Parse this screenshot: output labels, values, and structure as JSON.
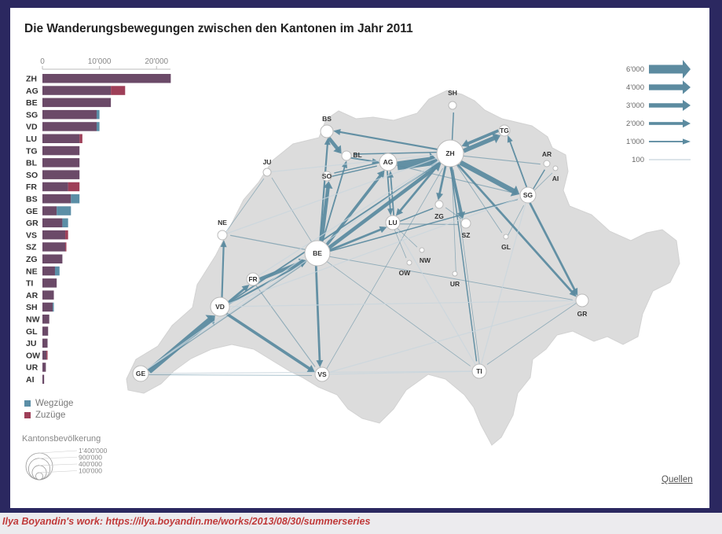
{
  "title": "Die Wanderungsbewegungen zwischen den Kantonen im Jahr 2011",
  "caption": "Ilya Boyandin's work: https://ilya.boyandin.me/works/2013/08/30/summerseries",
  "quellen_label": "Quellen",
  "colors": {
    "wegzuege": "#5b8ea6",
    "zuzuege": "#9e3f58",
    "overlap": "#6b4a68",
    "map": "#dcdcdc",
    "flow": "#5c8ba0"
  },
  "legend": {
    "wegzuege": "Wegzüge",
    "zuzuege": "Zuzüge"
  },
  "population_legend": {
    "title": "Kantonsbevölkerung",
    "labels": [
      "1'400'000",
      "900'000",
      "400'000",
      "100'000"
    ],
    "values": [
      1400000,
      900000,
      400000,
      100000
    ]
  },
  "flow_scale": {
    "labels": [
      "6'000",
      "4'000",
      "3'000",
      "2'000",
      "1'000",
      "100"
    ],
    "values": [
      6000,
      4000,
      3000,
      2000,
      1000,
      100
    ]
  },
  "chart_data": [
    {
      "type": "bar",
      "categories": [
        "ZH",
        "AG",
        "BE",
        "SG",
        "VD",
        "LU",
        "TG",
        "BL",
        "SO",
        "FR",
        "BS",
        "GE",
        "GR",
        "VS",
        "SZ",
        "ZG",
        "NE",
        "TI",
        "AR",
        "SH",
        "NW",
        "GL",
        "JU",
        "OW",
        "UR",
        "AI"
      ],
      "series": [
        {
          "name": "Wegzüge",
          "values": [
            22500,
            12000,
            12000,
            10000,
            10000,
            6500,
            6500,
            6500,
            6500,
            4500,
            6500,
            5000,
            4500,
            4000,
            4000,
            3500,
            3000,
            2500,
            2000,
            2000,
            1200,
            1000,
            900,
            700,
            600,
            300
          ]
        },
        {
          "name": "Zuzüge",
          "values": [
            22500,
            14500,
            12000,
            9500,
            9500,
            7000,
            6500,
            6500,
            6500,
            6500,
            5000,
            2500,
            3500,
            4500,
            4200,
            3500,
            2200,
            2500,
            2000,
            1800,
            1200,
            1000,
            900,
            900,
            600,
            300
          ]
        }
      ],
      "axis_ticks": [
        "0",
        "10'000",
        "20'000"
      ],
      "xlim": [
        0,
        23000
      ]
    },
    {
      "type": "flow-map",
      "nodes": [
        {
          "id": "ZH",
          "label": "ZH"
        },
        {
          "id": "BE",
          "label": "BE"
        },
        {
          "id": "VD",
          "label": "VD"
        },
        {
          "id": "AG",
          "label": "AG"
        },
        {
          "id": "SG",
          "label": "SG"
        },
        {
          "id": "LU",
          "label": "LU"
        },
        {
          "id": "GE",
          "label": "GE"
        },
        {
          "id": "VS",
          "label": "VS"
        },
        {
          "id": "TI",
          "label": "TI"
        },
        {
          "id": "GR",
          "label": "GR"
        },
        {
          "id": "FR",
          "label": "FR"
        },
        {
          "id": "BS",
          "label": "BS"
        },
        {
          "id": "BL",
          "label": "BL"
        },
        {
          "id": "SO",
          "label": "SO"
        },
        {
          "id": "TG",
          "label": "TG"
        },
        {
          "id": "NE",
          "label": "NE"
        },
        {
          "id": "SZ",
          "label": "SZ"
        },
        {
          "id": "ZG",
          "label": "ZG"
        },
        {
          "id": "SH",
          "label": "SH"
        },
        {
          "id": "AR",
          "label": "AR"
        },
        {
          "id": "AI",
          "label": "AI"
        },
        {
          "id": "JU",
          "label": "JU"
        },
        {
          "id": "NW",
          "label": "NW"
        },
        {
          "id": "OW",
          "label": "OW"
        },
        {
          "id": "UR",
          "label": "UR"
        },
        {
          "id": "GL",
          "label": "GL"
        }
      ],
      "flows": [
        {
          "from": "AG",
          "to": "ZH",
          "value": 6000
        },
        {
          "from": "BE",
          "to": "ZH",
          "value": 2500
        },
        {
          "from": "BE",
          "to": "AG",
          "value": 2000
        },
        {
          "from": "BE",
          "to": "LU",
          "value": 1500
        },
        {
          "from": "BE",
          "to": "SO",
          "value": 2500
        },
        {
          "from": "BE",
          "to": "BS",
          "value": 1200
        },
        {
          "from": "BE",
          "to": "VS",
          "value": 1500
        },
        {
          "from": "BE",
          "to": "BL",
          "value": 1000
        },
        {
          "from": "BE",
          "to": "SG",
          "value": 800
        },
        {
          "from": "BE",
          "to": "TI",
          "value": 400
        },
        {
          "from": "BE",
          "to": "GR",
          "value": 500
        },
        {
          "from": "BE",
          "to": "NE",
          "value": 700
        },
        {
          "from": "BE",
          "to": "JU",
          "value": 400
        },
        {
          "from": "FR",
          "to": "BE",
          "value": 2500
        },
        {
          "from": "VD",
          "to": "FR",
          "value": 1500
        },
        {
          "from": "VD",
          "to": "BE",
          "value": 1200
        },
        {
          "from": "VD",
          "to": "VS",
          "value": 2000
        },
        {
          "from": "VD",
          "to": "NE",
          "value": 1200
        },
        {
          "from": "VD",
          "to": "ZH",
          "value": 1000
        },
        {
          "from": "GE",
          "to": "VD",
          "value": 4000
        },
        {
          "from": "GE",
          "to": "VS",
          "value": 500
        },
        {
          "from": "GE",
          "to": "BE",
          "value": 700
        },
        {
          "from": "FR",
          "to": "VS",
          "value": 600
        },
        {
          "from": "ZH",
          "to": "SG",
          "value": 3500
        },
        {
          "from": "ZH",
          "to": "TG",
          "value": 3000
        },
        {
          "from": "TG",
          "to": "ZH",
          "value": 2000
        },
        {
          "from": "ZH",
          "to": "SZ",
          "value": 2000
        },
        {
          "from": "ZH",
          "to": "ZG",
          "value": 1500
        },
        {
          "from": "ZH",
          "to": "LU",
          "value": 1500
        },
        {
          "from": "ZH",
          "to": "GR",
          "value": 1500
        },
        {
          "from": "ZH",
          "to": "SH",
          "value": 800
        },
        {
          "from": "ZH",
          "to": "BS",
          "value": 1200
        },
        {
          "from": "ZH",
          "to": "BL",
          "value": 800
        },
        {
          "from": "ZH",
          "to": "TI",
          "value": 800
        },
        {
          "from": "ZH",
          "to": "AR",
          "value": 600
        },
        {
          "from": "ZH",
          "to": "GL",
          "value": 500
        },
        {
          "from": "BS",
          "to": "BL",
          "value": 2500
        },
        {
          "from": "BL",
          "to": "AG",
          "value": 1000
        },
        {
          "from": "SO",
          "to": "AG",
          "value": 800
        },
        {
          "from": "LU",
          "to": "AG",
          "value": 1000
        },
        {
          "from": "LU",
          "to": "ZG",
          "value": 800
        },
        {
          "from": "LU",
          "to": "SZ",
          "value": 700
        },
        {
          "from": "LU",
          "to": "NW",
          "value": 400
        },
        {
          "from": "LU",
          "to": "OW",
          "value": 400
        },
        {
          "from": "AG",
          "to": "LU",
          "value": 1000
        },
        {
          "from": "AG",
          "to": "SO",
          "value": 800
        },
        {
          "from": "AG",
          "to": "SG",
          "value": 600
        },
        {
          "from": "SG",
          "to": "TG",
          "value": 1000
        },
        {
          "from": "SG",
          "to": "GR",
          "value": 1500
        },
        {
          "from": "SG",
          "to": "AR",
          "value": 800
        },
        {
          "from": "SG",
          "to": "AI",
          "value": 300
        },
        {
          "from": "GR",
          "to": "TI",
          "value": 300
        },
        {
          "from": "TI",
          "to": "ZH",
          "value": 300
        },
        {
          "from": "VS",
          "to": "ZH",
          "value": 300
        },
        {
          "from": "NE",
          "to": "JU",
          "value": 300
        },
        {
          "from": "UR",
          "to": "ZH",
          "value": 300
        },
        {
          "from": "SZ",
          "to": "ZG",
          "value": 500
        },
        {
          "from": "GL",
          "to": "SG",
          "value": 300
        }
      ]
    }
  ]
}
